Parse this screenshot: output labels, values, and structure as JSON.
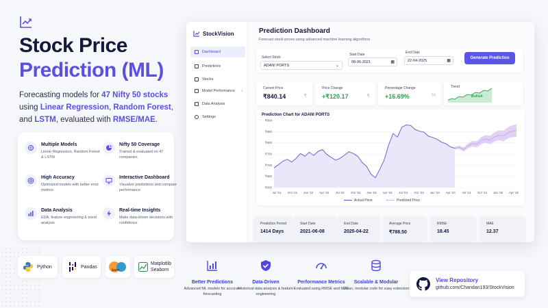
{
  "hero": {
    "title_line1": "Stock Price",
    "title_line2": "Prediction (ML)",
    "desc_p1": "Forecasting models for ",
    "desc_hl1": "47 Nifty 50 stocks",
    "desc_p2": " using ",
    "desc_hl2": "Linear Regression",
    "desc_p3": ", ",
    "desc_hl3": "Random Forest",
    "desc_p4": ", and ",
    "desc_hl4": "LSTM",
    "desc_p5": ", evaluated with ",
    "desc_hl5": "RMSE/MAE",
    "desc_p6": "."
  },
  "features": [
    {
      "title": "Multiple Models",
      "desc": "Linear Regression, Random Forest & LSTM",
      "icon": "brain-icon"
    },
    {
      "title": "Nifty 50 Coverage",
      "desc": "Trained & evaluated on 47 companies",
      "icon": "pie-chart-icon"
    },
    {
      "title": "High Accuracy",
      "desc": "Optimized models with better error metrics",
      "icon": "target-icon"
    },
    {
      "title": "Interactive Dashboard",
      "desc": "Visualize predictions and compare performance",
      "icon": "monitor-icon"
    },
    {
      "title": "Data Analysis",
      "desc": "EDA, feature engineering & trend analysis",
      "icon": "bar-chart-icon"
    },
    {
      "title": "Real-time Insights",
      "desc": "Make data-driven decisions with confidence",
      "icon": "lightning-icon"
    }
  ],
  "tech": {
    "python": "Python",
    "pandas": "Pandas",
    "sklearn": "learn",
    "matplotlib": "Matplotlib",
    "seaborn": "Seaborn"
  },
  "dashboard": {
    "brand": "StockVision",
    "nav": [
      "Dashboard",
      "Predictions",
      "Stocks",
      "Model Performance",
      "Data Analysis",
      "Settings"
    ],
    "title": "Prediction Dashboard",
    "subtitle": "Forecast stock prices using advanced machine learning algorithms",
    "select_stock_label": "Select Stock",
    "select_stock_value": "ADANI PORTS",
    "start_date_label": "Start Date",
    "start_date_value": "08-06-2021",
    "end_date_label": "End Date",
    "end_date_value": "22-04-2025",
    "generate_button": "Generate Prediction",
    "current_price_label": "Current Price",
    "current_price_value": "₹840.14",
    "price_change_label": "Price Change",
    "price_change_value": "+₹120.17",
    "pct_change_label": "Percentage Change",
    "pct_change_value": "+16.69%",
    "trend_label": "Trend",
    "trend_value": "Bullish",
    "currency_symbol": "₹",
    "percent_symbol": "%",
    "chart_title": "Prediction Chart for ADANI PORTS",
    "prediction_period_label": "Prediction Period",
    "prediction_period_value": "1414 Days",
    "start_date_stat_label": "Start Date",
    "start_date_stat_value": "2021-06-08",
    "end_date_stat_label": "End Date",
    "end_date_stat_value": "2025-04-22",
    "avg_price_label": "Average Price",
    "avg_price_value": "₹788.50",
    "rmse_label": "RMSE",
    "rmse_value": "18.45",
    "mae_label": "MAE",
    "mae_value": "12.37"
  },
  "chart_data": {
    "type": "line",
    "title": "Prediction Chart for ADANI PORTS",
    "x_ticks": [
      "Jul '21",
      "Oct '21",
      "Jan '22",
      "Apr '22",
      "Jul '22",
      "Oct '22",
      "Jan '23",
      "Apr '23",
      "Jul '23",
      "Oct '23",
      "Jan '24",
      "Apr '24",
      "Jul '24",
      "Oct '24",
      "Jan '25",
      "Apr '25"
    ],
    "y_ticks": [
      "₹900",
      "₹850",
      "₹800",
      "₹750",
      "₹700",
      "₹650",
      "₹600"
    ],
    "ylim": [
      600,
      900
    ],
    "series": [
      {
        "name": "Actual Price",
        "color": "#6c63d9",
        "values": [
          688,
          702,
          718,
          726,
          714,
          730,
          752,
          740,
          758,
          744,
          762,
          770,
          748,
          735,
          722,
          731,
          745,
          760,
          752,
          740,
          712,
          695,
          660,
          644,
          682,
          724,
          790,
          842,
          826,
          870,
          880,
          878,
          860,
          852,
          848,
          830,
          824,
          816,
          803,
          796,
          782,
          776
        ]
      },
      {
        "name": "Predicted Price",
        "color": "#b89be8",
        "values": [
          776,
          780,
          770,
          786,
          796,
          794,
          810,
          818,
          812,
          826,
          834,
          830,
          844,
          852,
          854
        ]
      }
    ],
    "legend": [
      "Actual Price",
      "Predicted Price"
    ],
    "legend_position": "bottom",
    "grid": true
  },
  "benefits": [
    {
      "title": "Better Predictions",
      "desc": "Advanced ML models for accurate forecasting",
      "icon": "bar-chart-icon"
    },
    {
      "title": "Data-Driven",
      "desc": "Historical data analysis & feature engineering",
      "icon": "shield-check-icon"
    },
    {
      "title": "Performance Metrics",
      "desc": "Evaluated using RMSE and MAE",
      "icon": "gauge-icon"
    },
    {
      "title": "Scalable & Modular",
      "desc": "Clean, modular code for easy extension",
      "icon": "database-icon"
    }
  ],
  "repo": {
    "title": "View Repository",
    "url": "github.com/Chandan193/StockVision",
    "icon": "github-icon"
  }
}
